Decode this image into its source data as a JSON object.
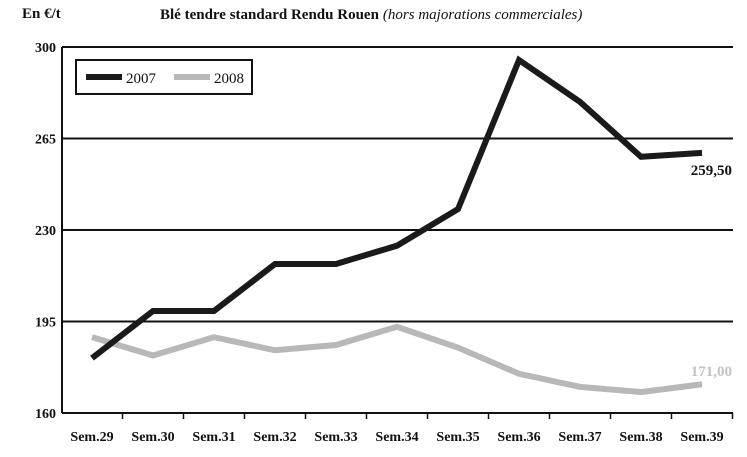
{
  "header": {
    "unit": "En €/t",
    "title": "Blé tendre standard Rendu Rouen",
    "subtitle": "(hors majorations commerciales)"
  },
  "chart_data": {
    "type": "line",
    "title": "Blé tendre standard Rendu Rouen",
    "subtitle": "(hors majorations commerciales)",
    "ylabel": "En €/t",
    "xlabel": "",
    "ylim": [
      160,
      300
    ],
    "yticks": [
      160,
      195,
      230,
      265,
      300
    ],
    "grid": true,
    "legend_position": "top-left",
    "categories": [
      "Sem.29",
      "Sem.30",
      "Sem.31",
      "Sem.32",
      "Sem.33",
      "Sem.34",
      "Sem.35",
      "Sem.36",
      "Sem.37",
      "Sem.38",
      "Sem.39"
    ],
    "series": [
      {
        "name": "2007",
        "color": "#1a1a1a",
        "values": [
          181,
          199,
          199,
          217,
          217,
          224,
          238,
          295,
          279,
          258,
          259.5
        ],
        "end_label": "259,50"
      },
      {
        "name": "2008",
        "color": "#b8b8b8",
        "values": [
          189,
          182,
          189,
          184,
          186,
          193,
          185,
          175,
          170,
          168,
          171
        ],
        "end_label": "171,00"
      }
    ]
  }
}
